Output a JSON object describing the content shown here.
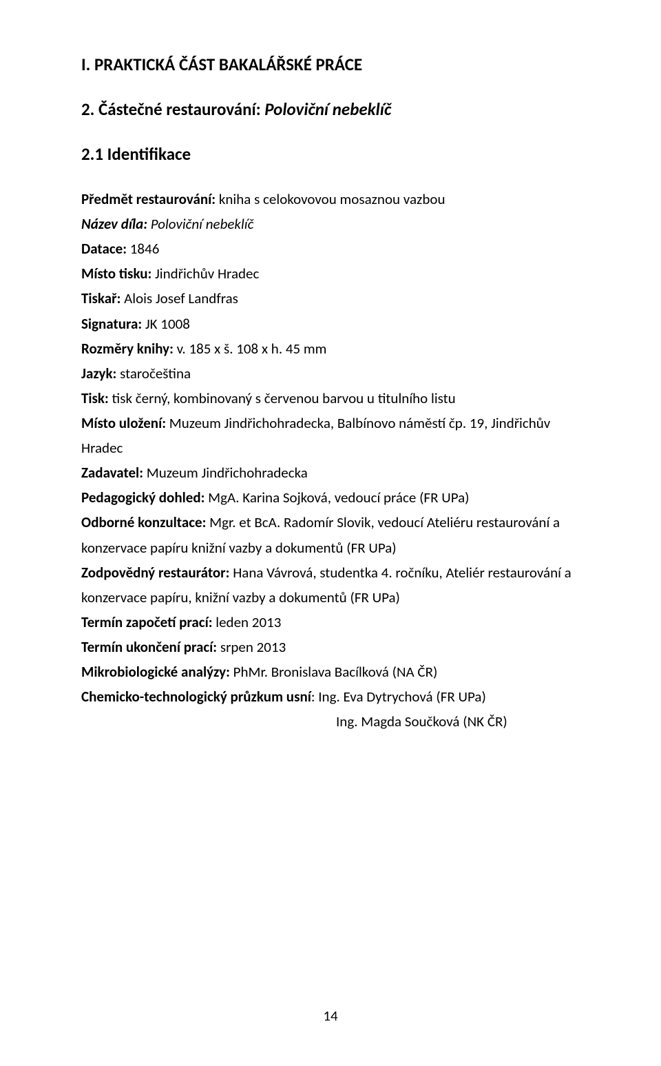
{
  "headings": {
    "h1": "I. PRAKTICKÁ ČÁST BAKALÁŘSKÉ PRÁCE",
    "h2_prefix": "2. Částečné restaurování: ",
    "h2_italic": "Poloviční nebeklíč",
    "h3": "2.1 Identifikace"
  },
  "fields": {
    "predmet": {
      "label": "Předmět restaurování:",
      "value": " kniha s celokovovou mosaznou vazbou"
    },
    "nazev": {
      "label": "Název díla:",
      "value_italic": " Poloviční nebeklíč"
    },
    "datace": {
      "label": "Datace:",
      "value": " 1846"
    },
    "misto_tisku": {
      "label": "Místo tisku:",
      "value": " Jindřichův Hradec"
    },
    "tiskar": {
      "label": "Tiskař:",
      "value": " Alois Josef Landfras"
    },
    "signatura": {
      "label": "Signatura:",
      "value": " JK 1008"
    },
    "rozmery": {
      "label": "Rozměry knihy:",
      "value": " v. 185 x š. 108 x h. 45 mm"
    },
    "jazyk": {
      "label": "Jazyk:",
      "value": " staročeština"
    },
    "tisk": {
      "label": "Tisk:",
      "value": " tisk černý, kombinovaný s červenou barvou u titulního listu"
    },
    "misto_ulozeni": {
      "label": "Místo uložení:",
      "value": " Muzeum Jindřichohradecka, Balbínovo náměstí čp. 19, Jindřichův Hradec"
    },
    "zadavatel": {
      "label": "Zadavatel:",
      "value": " Muzeum Jindřichohradecka"
    },
    "ped_dohled": {
      "label": "Pedagogický dohled:",
      "value": " MgA. Karina Sojková, vedoucí práce (FR UPa)"
    },
    "odborne": {
      "label": "Odborné konzultace:",
      "value": " Mgr. et BcA. Radomír Slovik, vedoucí Ateliéru restaurování a konzervace papíru knižní vazby a dokumentů (FR UPa)"
    },
    "zodpovedny": {
      "label": "Zodpovědný restaurátor:",
      "value": " Hana Vávrová, studentka 4. ročníku, Ateliér restaurování a konzervace papíru, knižní vazby a dokumentů (FR UPa)"
    },
    "termin_zapoceti": {
      "label": "Termín započetí prací:",
      "value": " leden 2013"
    },
    "termin_ukonceni": {
      "label": "Termín ukončení prací:",
      "value": " srpen 2013"
    },
    "mikrobio": {
      "label": "Mikrobiologické analýzy:",
      "value": " PhMr. Bronislava Bacílková (NA ČR)"
    },
    "chemtech": {
      "label": "Chemicko-technologický průzkum usní",
      "value": ": Ing. Eva Dytrychová (FR UPa)",
      "line2": "Ing. Magda Součková (NK ČR)"
    }
  },
  "page_number": "14"
}
